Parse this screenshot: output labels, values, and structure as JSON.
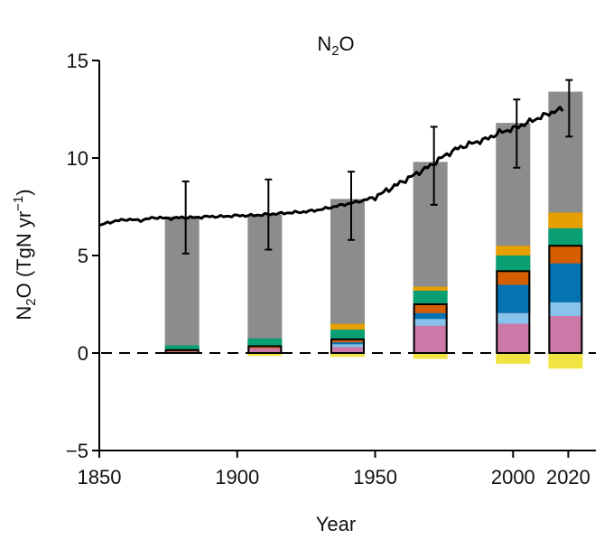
{
  "chart_data": {
    "type": "bar",
    "title": {
      "pre": "N",
      "sub": "2",
      "post": "O"
    },
    "ylabel": {
      "pre": "N",
      "sub": "2",
      "mid": "O (TgN yr",
      "sup": "−1",
      "post": ")"
    },
    "xlabel": "Year",
    "xlim": [
      1850,
      2030
    ],
    "ylim": [
      -5,
      15
    ],
    "x_ticks": [
      1850,
      1900,
      1950,
      2000,
      2020
    ],
    "y_ticks": [
      -5,
      0,
      5,
      10,
      15
    ],
    "x_tick_labels": [
      "1850",
      "1900",
      "1950",
      "2000",
      "2020"
    ],
    "y_tick_labels": [
      "−5",
      "0",
      "5",
      "10",
      "15"
    ],
    "grid": false,
    "legend": "none",
    "zero_line": "dashed",
    "colors": {
      "total": "#8c8c8c",
      "pink": "#cc79a7",
      "lightblue": "#87c3ea",
      "blue": "#0572b2",
      "vermillion": "#d55e00",
      "green": "#0a9e73",
      "orange": "#e69f00",
      "yellow": "#f0e442",
      "line": "#000000"
    },
    "bars": [
      {
        "year": 1880,
        "total": 7.0,
        "err": [
          5.1,
          8.8
        ],
        "positive": [
          {
            "c": "pink",
            "v": 0.08
          },
          {
            "c": "vermillion",
            "v": 0.07
          },
          {
            "c": "green",
            "v": 0.25
          }
        ],
        "negative": [
          {
            "c": "yellow",
            "v": 0.05
          }
        ],
        "box_top": 0.15
      },
      {
        "year": 1910,
        "total": 7.1,
        "err": [
          5.3,
          8.9
        ],
        "positive": [
          {
            "c": "pink",
            "v": 0.25
          },
          {
            "c": "vermillion",
            "v": 0.1
          },
          {
            "c": "green",
            "v": 0.4
          }
        ],
        "negative": [
          {
            "c": "yellow",
            "v": 0.15
          }
        ],
        "box_top": 0.35
      },
      {
        "year": 1940,
        "total": 7.9,
        "err": [
          5.8,
          9.3
        ],
        "positive": [
          {
            "c": "pink",
            "v": 0.3
          },
          {
            "c": "lightblue",
            "v": 0.15
          },
          {
            "c": "blue",
            "v": 0.1
          },
          {
            "c": "vermillion",
            "v": 0.15
          },
          {
            "c": "green",
            "v": 0.5
          },
          {
            "c": "orange",
            "v": 0.3
          }
        ],
        "negative": [
          {
            "c": "yellow",
            "v": 0.2
          }
        ],
        "box_top": 0.7
      },
      {
        "year": 1970,
        "total": 9.8,
        "err": [
          7.6,
          11.6
        ],
        "positive": [
          {
            "c": "pink",
            "v": 1.4
          },
          {
            "c": "lightblue",
            "v": 0.35
          },
          {
            "c": "blue",
            "v": 0.3
          },
          {
            "c": "vermillion",
            "v": 0.45
          },
          {
            "c": "green",
            "v": 0.7
          },
          {
            "c": "orange",
            "v": 0.2
          }
        ],
        "negative": [
          {
            "c": "yellow",
            "v": 0.3
          }
        ],
        "box_top": 2.5
      },
      {
        "year": 2000,
        "total": 11.8,
        "err": [
          9.5,
          13.0
        ],
        "positive": [
          {
            "c": "pink",
            "v": 1.5
          },
          {
            "c": "lightblue",
            "v": 0.55
          },
          {
            "c": "blue",
            "v": 1.45
          },
          {
            "c": "vermillion",
            "v": 0.7
          },
          {
            "c": "green",
            "v": 0.8
          },
          {
            "c": "orange",
            "v": 0.5
          }
        ],
        "negative": [
          {
            "c": "yellow",
            "v": 0.55
          }
        ],
        "box_top": 4.2
      },
      {
        "year": 2019,
        "total": 13.4,
        "err": [
          11.1,
          14.0
        ],
        "positive": [
          {
            "c": "pink",
            "v": 1.9
          },
          {
            "c": "lightblue",
            "v": 0.7
          },
          {
            "c": "blue",
            "v": 2.0
          },
          {
            "c": "vermillion",
            "v": 0.9
          },
          {
            "c": "green",
            "v": 0.9
          },
          {
            "c": "orange",
            "v": 0.8
          }
        ],
        "negative": [
          {
            "c": "yellow",
            "v": 0.8
          }
        ],
        "box_top": 5.5
      }
    ],
    "line": {
      "x": [
        1850,
        1855,
        1860,
        1865,
        1870,
        1875,
        1880,
        1885,
        1890,
        1895,
        1900,
        1905,
        1910,
        1915,
        1920,
        1925,
        1930,
        1935,
        1940,
        1945,
        1950,
        1955,
        1960,
        1965,
        1970,
        1975,
        1980,
        1985,
        1990,
        1995,
        2000,
        2005,
        2010,
        2015,
        2018
      ],
      "y": [
        6.55,
        6.75,
        6.85,
        6.8,
        6.95,
        6.9,
        6.95,
        6.95,
        7.0,
        7.0,
        7.05,
        7.05,
        7.1,
        7.15,
        7.2,
        7.25,
        7.35,
        7.5,
        7.65,
        7.8,
        8.0,
        8.4,
        8.8,
        9.2,
        9.6,
        10.1,
        10.5,
        10.75,
        10.95,
        11.3,
        11.5,
        11.8,
        12.1,
        12.4,
        12.5
      ]
    }
  }
}
